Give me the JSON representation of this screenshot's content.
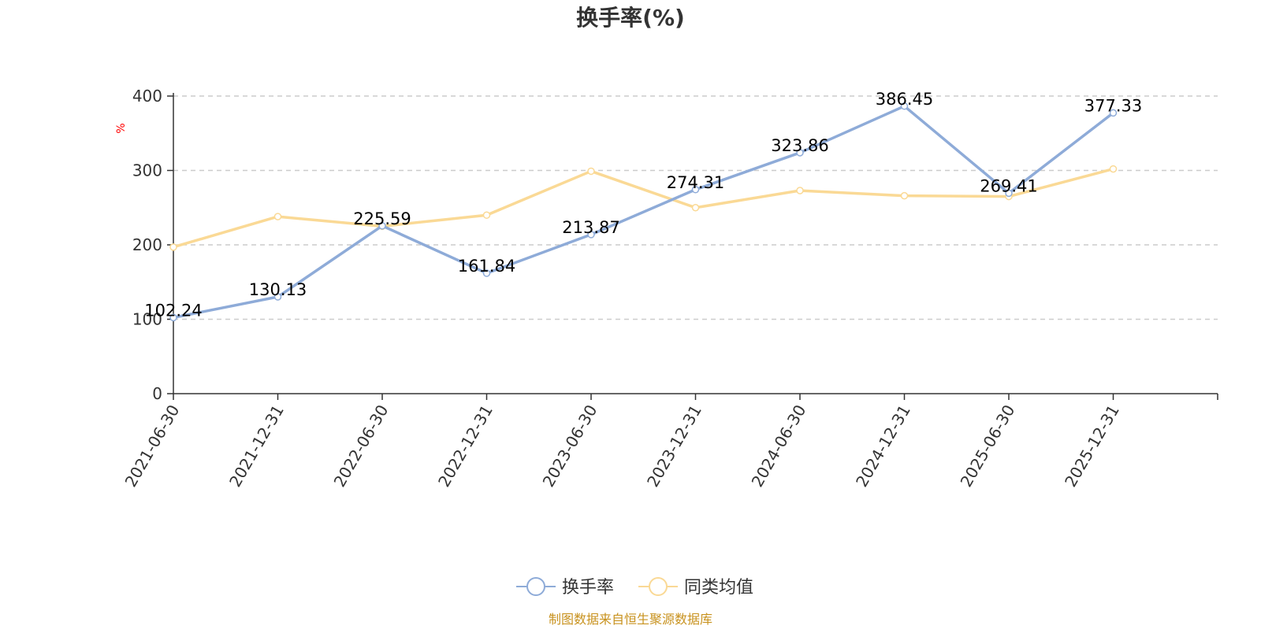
{
  "chart_data": {
    "type": "line",
    "title": "换手率(%)",
    "ylabel": "%",
    "xlabel": "",
    "ylim": [
      0,
      400
    ],
    "yticks": [
      0,
      100,
      200,
      300,
      400
    ],
    "grid": true,
    "legend_position": "bottom-center",
    "categories": [
      "2021-06-30",
      "2021-12-31",
      "2022-06-30",
      "2022-12-31",
      "2023-06-30",
      "2023-12-31",
      "2024-06-30",
      "2024-12-31",
      "2025-06-30",
      "2025-12-31"
    ],
    "series": [
      {
        "name": "换手率",
        "color": "#8eabd8",
        "values": [
          102.24,
          130.13,
          225.59,
          161.84,
          213.87,
          274.31,
          323.86,
          386.45,
          269.41,
          377.33
        ],
        "labels": [
          "102.24",
          "130.13",
          "225.59",
          "161.84",
          "213.87",
          "274.31",
          "323.86",
          "386.45",
          "269.41",
          "377.33"
        ]
      },
      {
        "name": "同类均值",
        "color": "#fad995",
        "values": [
          197,
          238,
          225,
          240,
          299,
          250,
          273,
          266,
          265,
          302
        ]
      }
    ]
  },
  "source": "制图数据来自恒生聚源数据库"
}
